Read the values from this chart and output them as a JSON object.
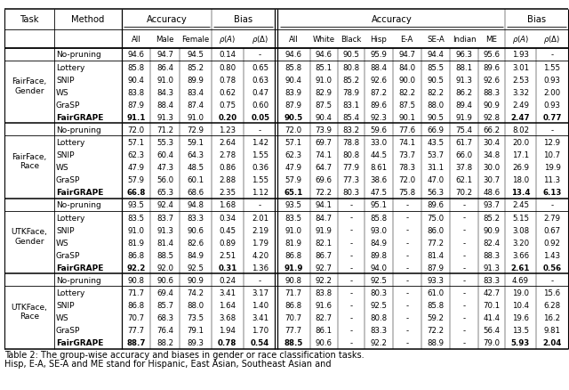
{
  "sections": [
    {
      "task": "FairFace,\nGender",
      "rows": [
        {
          "method": "No-pruning",
          "bold_method": false,
          "data": [
            "94.6",
            "94.7",
            "94.5",
            "0.14",
            "-",
            "94.6",
            "94.6",
            "90.5",
            "95.9",
            "94.7",
            "94.4",
            "96.3",
            "95.6",
            "1.93",
            "-"
          ]
        },
        {
          "method": "Lottery",
          "bold_method": false,
          "data": [
            "85.8",
            "86.4",
            "85.2",
            "0.80",
            "0.65",
            "85.8",
            "85.1",
            "80.8",
            "88.4",
            "84.0",
            "85.5",
            "88.1",
            "89.6",
            "3.01",
            "1.55"
          ]
        },
        {
          "method": "SNIP",
          "bold_method": false,
          "data": [
            "90.4",
            "91.0",
            "89.9",
            "0.78",
            "0.63",
            "90.4",
            "91.0",
            "85.2",
            "92.6",
            "90.0",
            "90.5",
            "91.3",
            "92.6",
            "2.53",
            "0.93"
          ]
        },
        {
          "method": "WS",
          "bold_method": false,
          "data": [
            "83.8",
            "84.3",
            "83.4",
            "0.62",
            "0.47",
            "83.9",
            "82.9",
            "78.9",
            "87.2",
            "82.2",
            "82.2",
            "86.2",
            "88.3",
            "3.32",
            "2.00"
          ]
        },
        {
          "method": "GraSP",
          "bold_method": false,
          "data": [
            "87.9",
            "88.4",
            "87.4",
            "0.75",
            "0.60",
            "87.9",
            "87.5",
            "83.1",
            "89.6",
            "87.5",
            "88.0",
            "89.4",
            "90.9",
            "2.49",
            "0.93"
          ]
        },
        {
          "method": "FairGRAPE",
          "bold_method": true,
          "data": [
            "91.1",
            "91.3",
            "91.0",
            "0.20",
            "0.05",
            "90.5",
            "90.4",
            "85.4",
            "92.3",
            "90.1",
            "90.5",
            "91.9",
            "92.8",
            "2.47",
            "0.77"
          ],
          "bold_data": [
            true,
            false,
            false,
            true,
            true,
            true,
            false,
            false,
            false,
            false,
            false,
            false,
            false,
            true,
            true
          ]
        }
      ]
    },
    {
      "task": "FairFace,\nRace",
      "rows": [
        {
          "method": "No-pruning",
          "bold_method": false,
          "data": [
            "72.0",
            "71.2",
            "72.9",
            "1.23",
            "-",
            "72.0",
            "73.9",
            "83.2",
            "59.6",
            "77.6",
            "66.9",
            "75.4",
            "66.2",
            "8.02",
            "-"
          ],
          "bold_data": [
            false,
            false,
            false,
            false,
            false,
            false,
            false,
            false,
            false,
            false,
            false,
            false,
            false,
            false,
            false
          ]
        },
        {
          "method": "Lottery",
          "bold_method": false,
          "data": [
            "57.1",
            "55.3",
            "59.1",
            "2.64",
            "1.42",
            "57.1",
            "69.7",
            "78.8",
            "33.0",
            "74.1",
            "43.5",
            "61.7",
            "30.4",
            "20.0",
            "12.9"
          ],
          "bold_data": [
            false,
            false,
            false,
            false,
            false,
            false,
            false,
            false,
            false,
            false,
            false,
            false,
            false,
            false,
            false
          ]
        },
        {
          "method": "SNIP",
          "bold_method": false,
          "data": [
            "62.3",
            "60.4",
            "64.3",
            "2.78",
            "1.55",
            "62.3",
            "74.1",
            "80.8",
            "44.5",
            "73.7",
            "53.7",
            "66.0",
            "34.8",
            "17.1",
            "10.7"
          ],
          "bold_data": [
            false,
            false,
            false,
            false,
            false,
            false,
            false,
            false,
            false,
            false,
            false,
            false,
            false,
            false,
            false
          ]
        },
        {
          "method": "WS",
          "bold_method": false,
          "data": [
            "47.9",
            "47.3",
            "48.5",
            "0.86",
            "0.36",
            "47.9",
            "64.7",
            "77.9",
            "8.61",
            "78.3",
            "31.1",
            "37.8",
            "30.0",
            "26.9",
            "19.9"
          ],
          "bold_data": [
            false,
            false,
            false,
            true,
            true,
            false,
            false,
            false,
            false,
            false,
            false,
            false,
            false,
            false,
            false
          ]
        },
        {
          "method": "GraSP",
          "bold_method": false,
          "data": [
            "57.9",
            "56.0",
            "60.1",
            "2.88",
            "1.55",
            "57.9",
            "69.6",
            "77.3",
            "38.6",
            "72.0",
            "47.0",
            "62.1",
            "30.7",
            "18.0",
            "11.3"
          ],
          "bold_data": [
            false,
            false,
            false,
            false,
            false,
            false,
            false,
            false,
            false,
            false,
            false,
            false,
            false,
            false,
            false
          ]
        },
        {
          "method": "FairGRAPE",
          "bold_method": true,
          "data": [
            "66.8",
            "65.3",
            "68.6",
            "2.35",
            "1.12",
            "65.1",
            "72.2",
            "80.3",
            "47.5",
            "75.8",
            "56.3",
            "70.2",
            "48.6",
            "13.4",
            "6.13"
          ],
          "bold_data": [
            true,
            false,
            false,
            false,
            false,
            true,
            false,
            false,
            false,
            false,
            false,
            false,
            false,
            true,
            true
          ]
        }
      ]
    },
    {
      "task": "UTKFace,\nGender",
      "rows": [
        {
          "method": "No-pruning",
          "bold_method": false,
          "data": [
            "93.5",
            "92.4",
            "94.8",
            "1.68",
            "-",
            "93.5",
            "94.1",
            "-",
            "95.1",
            "-",
            "89.6",
            "-",
            "93.7",
            "2.45",
            "-"
          ],
          "bold_data": [
            false,
            false,
            false,
            false,
            false,
            false,
            false,
            false,
            false,
            false,
            false,
            false,
            false,
            false,
            false
          ]
        },
        {
          "method": "Lottery",
          "bold_method": false,
          "data": [
            "83.5",
            "83.7",
            "83.3",
            "0.34",
            "2.01",
            "83.5",
            "84.7",
            "-",
            "85.8",
            "-",
            "75.0",
            "-",
            "85.2",
            "5.15",
            "2.79"
          ],
          "bold_data": [
            false,
            false,
            false,
            false,
            false,
            false,
            false,
            false,
            false,
            false,
            false,
            false,
            false,
            false,
            false
          ]
        },
        {
          "method": "SNIP",
          "bold_method": false,
          "data": [
            "91.0",
            "91.3",
            "90.6",
            "0.45",
            "2.19",
            "91.0",
            "91.9",
            "-",
            "93.0",
            "-",
            "86.0",
            "-",
            "90.9",
            "3.08",
            "0.67"
          ],
          "bold_data": [
            false,
            false,
            false,
            false,
            false,
            false,
            false,
            false,
            false,
            false,
            false,
            false,
            false,
            false,
            false
          ]
        },
        {
          "method": "WS",
          "bold_method": false,
          "data": [
            "81.9",
            "81.4",
            "82.6",
            "0.89",
            "1.79",
            "81.9",
            "82.1",
            "-",
            "84.9",
            "-",
            "77.2",
            "-",
            "82.4",
            "3.20",
            "0.92"
          ],
          "bold_data": [
            false,
            false,
            false,
            false,
            false,
            false,
            false,
            false,
            false,
            false,
            false,
            false,
            false,
            false,
            false
          ]
        },
        {
          "method": "GraSP",
          "bold_method": false,
          "data": [
            "86.8",
            "88.5",
            "84.9",
            "2.51",
            "4.20",
            "86.8",
            "86.7",
            "-",
            "89.8",
            "-",
            "81.4",
            "-",
            "88.3",
            "3.66",
            "1.43"
          ],
          "bold_data": [
            false,
            false,
            false,
            false,
            false,
            false,
            false,
            false,
            false,
            false,
            false,
            false,
            false,
            false,
            false
          ]
        },
        {
          "method": "FairGRAPE",
          "bold_method": true,
          "data": [
            "92.2",
            "92.0",
            "92.5",
            "0.31",
            "1.36",
            "91.9",
            "92.7",
            "-",
            "94.0",
            "-",
            "87.9",
            "-",
            "91.3",
            "2.61",
            "0.56"
          ],
          "bold_data": [
            true,
            false,
            false,
            true,
            false,
            true,
            false,
            false,
            false,
            false,
            false,
            false,
            false,
            true,
            true
          ]
        }
      ]
    },
    {
      "task": "UTKFace,\nRace",
      "rows": [
        {
          "method": "No-pruning",
          "bold_method": false,
          "data": [
            "90.8",
            "90.6",
            "90.9",
            "0.24",
            "-",
            "90.8",
            "92.2",
            "-",
            "92.5",
            "-",
            "93.3",
            "-",
            "83.3",
            "4.69",
            "-"
          ],
          "bold_data": [
            false,
            false,
            false,
            false,
            false,
            false,
            false,
            false,
            false,
            false,
            false,
            false,
            false,
            false,
            false
          ]
        },
        {
          "method": "Lottery",
          "bold_method": false,
          "data": [
            "71.7",
            "69.4",
            "74.2",
            "3.41",
            "3.17",
            "71.7",
            "83.8",
            "-",
            "80.3",
            "-",
            "61.0",
            "-",
            "42.7",
            "19.0",
            "15.6"
          ],
          "bold_data": [
            false,
            false,
            false,
            false,
            false,
            false,
            false,
            false,
            false,
            false,
            false,
            false,
            false,
            false,
            false
          ]
        },
        {
          "method": "SNIP",
          "bold_method": false,
          "data": [
            "86.8",
            "85.7",
            "88.0",
            "1.64",
            "1.40",
            "86.8",
            "91.6",
            "-",
            "92.5",
            "-",
            "85.8",
            "-",
            "70.1",
            "10.4",
            "6.28"
          ],
          "bold_data": [
            false,
            false,
            false,
            false,
            false,
            false,
            false,
            false,
            false,
            false,
            false,
            false,
            false,
            false,
            false
          ]
        },
        {
          "method": "WS",
          "bold_method": false,
          "data": [
            "70.7",
            "68.3",
            "73.5",
            "3.68",
            "3.41",
            "70.7",
            "82.7",
            "-",
            "80.8",
            "-",
            "59.2",
            "-",
            "41.4",
            "19.6",
            "16.2"
          ],
          "bold_data": [
            false,
            false,
            false,
            false,
            false,
            false,
            false,
            false,
            false,
            false,
            false,
            false,
            false,
            false,
            false
          ]
        },
        {
          "method": "GraSP",
          "bold_method": false,
          "data": [
            "77.7",
            "76.4",
            "79.1",
            "1.94",
            "1.70",
            "77.7",
            "86.1",
            "-",
            "83.3",
            "-",
            "72.2",
            "-",
            "56.4",
            "13.5",
            "9.81"
          ],
          "bold_data": [
            false,
            false,
            false,
            false,
            false,
            false,
            false,
            false,
            false,
            false,
            false,
            false,
            false,
            false,
            false
          ]
        },
        {
          "method": "FairGRAPE",
          "bold_method": true,
          "data": [
            "88.7",
            "88.2",
            "89.3",
            "0.78",
            "0.54",
            "88.5",
            "90.6",
            "-",
            "92.2",
            "-",
            "88.9",
            "-",
            "79.0",
            "5.93",
            "2.04"
          ],
          "bold_data": [
            true,
            false,
            false,
            true,
            true,
            true,
            false,
            false,
            false,
            false,
            false,
            false,
            false,
            true,
            true
          ]
        }
      ]
    }
  ],
  "caption_line1": "Table 2: The group-wise accuracy and biases in gender or race classification tasks.",
  "caption_line2": "Hisp, E-A, SE-A and ME stand for Hispanic, East Asian, Southeast Asian and"
}
